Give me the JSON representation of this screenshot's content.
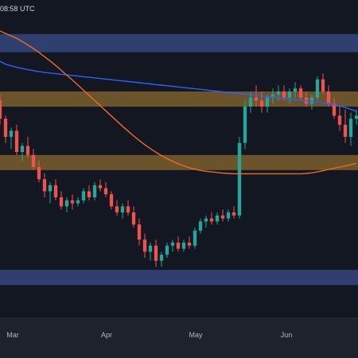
{
  "header": {
    "timestamp": "08:58 UTC"
  },
  "colors": {
    "background": "#131722",
    "axis_strip": "#1e222d",
    "up_candle": "#26a69a",
    "down_candle": "#ef5350",
    "ma_blue": "#2962ff",
    "ma_orange": "#f06a22",
    "zone_blue": "#3a4e8a",
    "zone_orange": "#8a6a2e"
  },
  "chart_data": {
    "type": "candlestick",
    "x_ticks": [
      "Mar",
      "Apr",
      "May",
      "Jun"
    ],
    "grid": false,
    "price_range": [
      0,
      100
    ],
    "zones": [
      {
        "name": "upper-blue-zone",
        "color": "blue",
        "range": [
          88,
          94
        ]
      },
      {
        "name": "upper-orange-zone",
        "color": "orange",
        "range": [
          70,
          75
        ]
      },
      {
        "name": "lower-orange-zone",
        "color": "orange",
        "range": [
          49,
          54
        ]
      },
      {
        "name": "lower-blue-zone",
        "color": "blue",
        "range": [
          11,
          16
        ]
      }
    ],
    "candles": [
      [
        72,
        74,
        64,
        66
      ],
      [
        66,
        67,
        58,
        60
      ],
      [
        60,
        63,
        56,
        62
      ],
      [
        62,
        64,
        54,
        55
      ],
      [
        55,
        58,
        52,
        57
      ],
      [
        57,
        60,
        53,
        54
      ],
      [
        54,
        56,
        49,
        50
      ],
      [
        50,
        52,
        45,
        46
      ],
      [
        46,
        48,
        40,
        42
      ],
      [
        42,
        45,
        38,
        44
      ],
      [
        44,
        46,
        39,
        40
      ],
      [
        40,
        42,
        36,
        37
      ],
      [
        37,
        40,
        35,
        39
      ],
      [
        39,
        41,
        36,
        38
      ],
      [
        38,
        40,
        37,
        39
      ],
      [
        39,
        43,
        38,
        42
      ],
      [
        42,
        44,
        39,
        40
      ],
      [
        40,
        45,
        39,
        44
      ],
      [
        44,
        46,
        42,
        43
      ],
      [
        43,
        45,
        40,
        41
      ],
      [
        41,
        42,
        36,
        37
      ],
      [
        37,
        39,
        34,
        35
      ],
      [
        35,
        38,
        33,
        37
      ],
      [
        37,
        39,
        34,
        35
      ],
      [
        35,
        37,
        30,
        31
      ],
      [
        31,
        33,
        24,
        26
      ],
      [
        26,
        28,
        20,
        22
      ],
      [
        22,
        25,
        19,
        24
      ],
      [
        24,
        26,
        17,
        19
      ],
      [
        19,
        22,
        17,
        21
      ],
      [
        21,
        25,
        20,
        24
      ],
      [
        24,
        26,
        22,
        25
      ],
      [
        25,
        27,
        22,
        23
      ],
      [
        23,
        26,
        22,
        25
      ],
      [
        25,
        27,
        23,
        24
      ],
      [
        24,
        30,
        23,
        29
      ],
      [
        29,
        33,
        28,
        32
      ],
      [
        32,
        34,
        30,
        33
      ],
      [
        33,
        35,
        31,
        32
      ],
      [
        32,
        35,
        31,
        34
      ],
      [
        34,
        36,
        32,
        33
      ],
      [
        33,
        36,
        32,
        35
      ],
      [
        35,
        37,
        33,
        34
      ],
      [
        34,
        60,
        33,
        58
      ],
      [
        58,
        72,
        56,
        70
      ],
      [
        70,
        75,
        68,
        73
      ],
      [
        73,
        77,
        70,
        72
      ],
      [
        72,
        75,
        68,
        70
      ],
      [
        70,
        74,
        68,
        73
      ],
      [
        73,
        76,
        71,
        74
      ],
      [
        74,
        77,
        72,
        75
      ],
      [
        75,
        77,
        72,
        73
      ],
      [
        73,
        76,
        71,
        75
      ],
      [
        75,
        78,
        73,
        76
      ],
      [
        76,
        77,
        72,
        73
      ],
      [
        73,
        75,
        70,
        71
      ],
      [
        71,
        74,
        69,
        73
      ],
      [
        73,
        80,
        72,
        79
      ],
      [
        79,
        81,
        74,
        75
      ],
      [
        75,
        77,
        70,
        71
      ],
      [
        71,
        73,
        66,
        67
      ],
      [
        67,
        70,
        62,
        64
      ],
      [
        64,
        69,
        58,
        60
      ],
      [
        60,
        68,
        57,
        66
      ],
      [
        66,
        69,
        64,
        67
      ]
    ],
    "moving_averages": [
      {
        "color": "blue",
        "values": [
          85,
          84,
          83.5,
          83,
          82.6,
          82.2,
          81.9,
          81.6,
          81.3,
          81.1,
          80.9,
          80.7,
          80.5,
          80.3,
          80.1,
          79.9,
          79.7,
          79.5,
          79.3,
          79.1,
          78.9,
          78.7,
          78.5,
          78.3,
          78.1,
          77.9,
          77.7,
          77.5,
          77.3,
          77.1,
          76.9,
          76.7,
          76.5,
          76.3,
          76.1,
          75.9,
          75.7,
          75.5,
          75.3,
          75.1,
          74.9,
          74.7,
          74.5,
          74.3,
          74.1,
          73.9,
          73.7,
          73.5,
          73.3,
          73.1,
          72.9,
          72.7,
          72.5,
          72.3,
          72.1,
          71.9,
          71.7,
          71.5,
          71.3,
          71.0,
          70.6,
          70.2,
          69.7,
          69.1,
          68.5
        ]
      },
      {
        "color": "orange",
        "values": [
          95,
          94.2,
          93.4,
          92.6,
          91.5,
          90.4,
          89.2,
          87.9,
          86.5,
          85.1,
          83.6,
          82.0,
          80.4,
          78.8,
          77.1,
          75.4,
          73.7,
          72.0,
          70.3,
          68.6,
          66.9,
          65.2,
          63.5,
          61.9,
          60.3,
          58.8,
          57.4,
          56.1,
          54.9,
          53.8,
          52.8,
          51.9,
          51.1,
          50.4,
          49.8,
          49.3,
          48.9,
          48.6,
          48.4,
          48.2,
          48.0,
          47.9,
          47.8,
          47.8,
          47.8,
          47.8,
          47.8,
          47.8,
          47.8,
          47.8,
          47.8,
          47.8,
          47.8,
          47.8,
          47.8,
          47.9,
          48.1,
          48.4,
          48.8,
          49.2,
          49.6,
          50.0,
          50.4,
          50.8,
          51.2
        ]
      }
    ]
  }
}
